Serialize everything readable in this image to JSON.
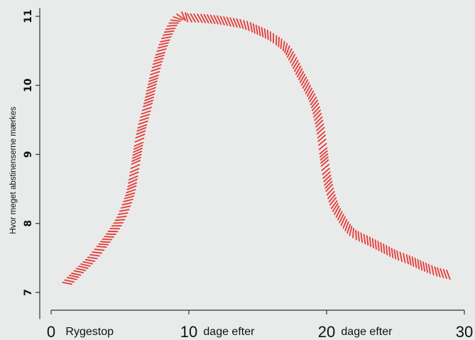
{
  "chart_data": {
    "type": "line",
    "title": "",
    "xlabel": "",
    "ylabel": "Hvor meget abstinenserne mærkes",
    "xlim": [
      0,
      30
    ],
    "ylim": [
      6.8,
      11.1
    ],
    "x_ticks": [
      0,
      10,
      20,
      30
    ],
    "y_ticks": [
      7,
      8,
      9,
      10,
      11
    ],
    "grid": false,
    "legend": "none",
    "annotations": [
      {
        "text": "Rygestop",
        "x": 1
      },
      {
        "text": "dage efter",
        "x": 11
      },
      {
        "text": "dage efter",
        "x": 21
      }
    ],
    "series": [
      {
        "color": "#e53935",
        "style": "hatched",
        "x": [
          1,
          2,
          3,
          4,
          5,
          5.7,
          6,
          6.5,
          7,
          7.5,
          8,
          8.5,
          9,
          9.5,
          10,
          11,
          12,
          13,
          14,
          15,
          16,
          17,
          17.5,
          18,
          18.5,
          19,
          19.3,
          19.6,
          20,
          20.5,
          21,
          21.5,
          22,
          23,
          24,
          25,
          26,
          27,
          28,
          29
        ],
        "y": [
          7.1,
          7.3,
          7.5,
          7.75,
          8.05,
          8.4,
          8.7,
          9.3,
          9.7,
          10.15,
          10.5,
          10.75,
          10.93,
          11.0,
          10.98,
          10.97,
          10.95,
          10.92,
          10.88,
          10.8,
          10.7,
          10.55,
          10.4,
          10.2,
          10.0,
          9.8,
          9.6,
          9.3,
          8.7,
          8.3,
          8.1,
          7.95,
          7.85,
          7.75,
          7.65,
          7.55,
          7.47,
          7.38,
          7.3,
          7.25
        ]
      }
    ]
  }
}
